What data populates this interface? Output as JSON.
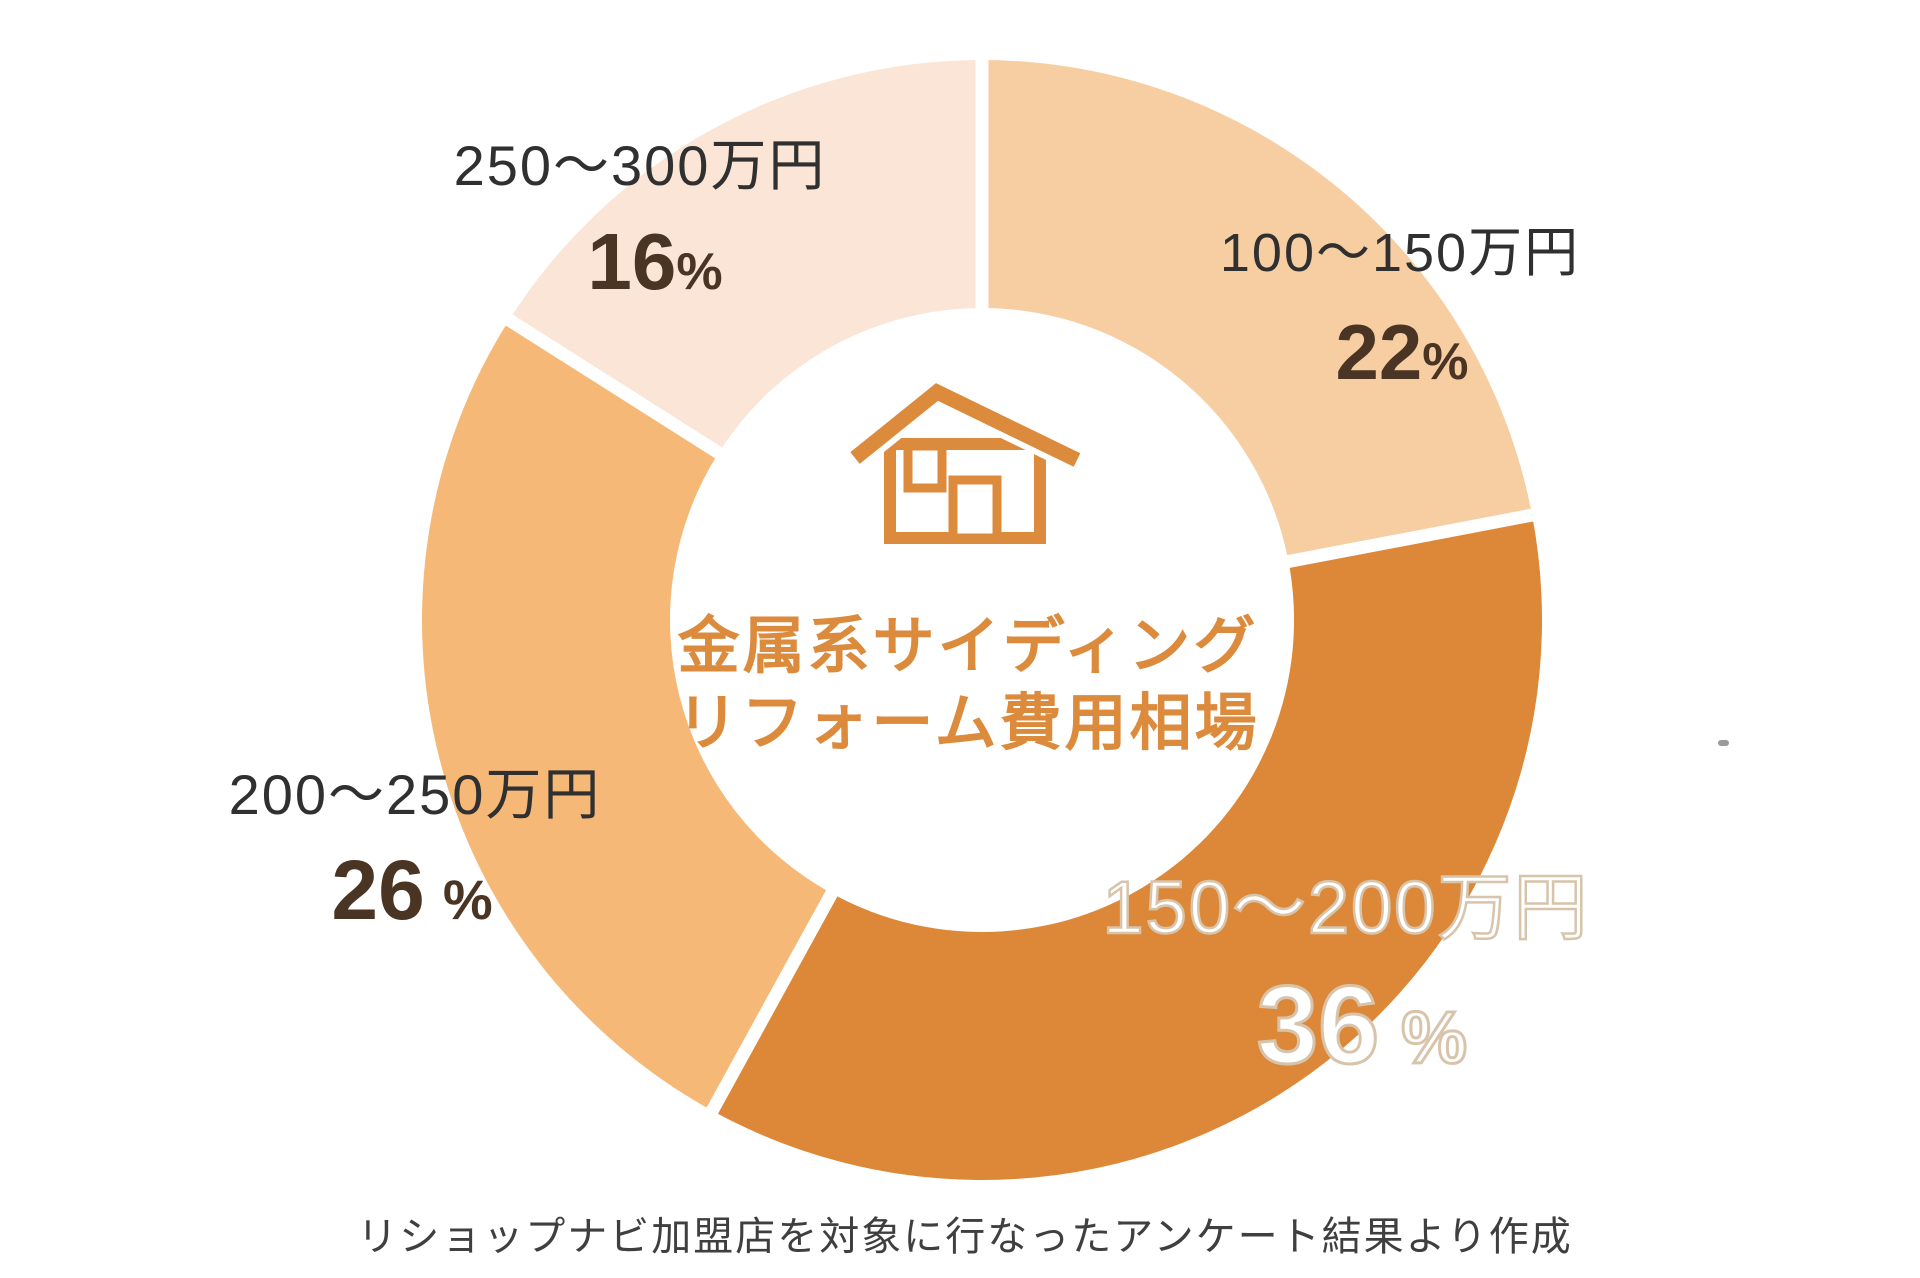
{
  "chart_data": {
    "type": "pie",
    "donut": true,
    "direction": "clockwise",
    "start_angle_deg": 0,
    "inner_radius_ratio": 0.557,
    "percent_sign": "%",
    "title_lines": [
      "金属系サイディング",
      "リフォーム費用相場"
    ],
    "center_icon": "house-icon",
    "segments": [
      {
        "label": "100〜150万円",
        "value": 22,
        "pct": "22",
        "color": "#F6CEA2"
      },
      {
        "label": "150〜200万円",
        "value": 36,
        "pct": "36",
        "color": "#DD8838"
      },
      {
        "label": "200〜250万円",
        "value": 26,
        "pct": "26",
        "color": "#F5B877"
      },
      {
        "label": "250〜300万円",
        "value": 16,
        "pct": "16",
        "color": "#FAE5D6"
      }
    ],
    "footnote": "リショップナビ加盟店を対象に行なったアンケート結果より作成"
  },
  "colors": {
    "accent_orange": "#DC8A3C",
    "range_label_text": "#303030",
    "percent_label_text": "#4A3423",
    "outlined_label_stroke": "#D7C4AB",
    "divider": "#FFFFFF"
  }
}
